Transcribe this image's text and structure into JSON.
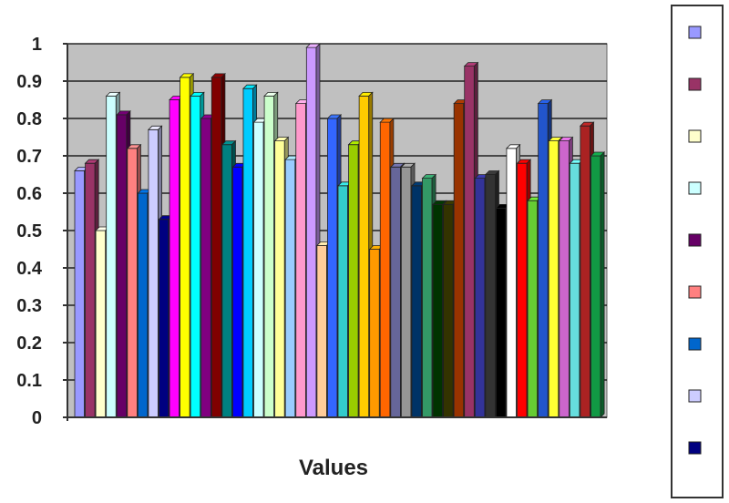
{
  "chart_data": {
    "type": "bar",
    "title": "",
    "xlabel": "Values",
    "ylabel": "",
    "ylim": [
      0,
      1
    ],
    "y_ticks": [
      "0",
      "0.1",
      "0.2",
      "0.3",
      "0.4",
      "0.5",
      "0.6",
      "0.7",
      "0.8",
      "0.9",
      "1"
    ],
    "grid": "horizontal",
    "legend_position": "right",
    "plot_background": "#c0c0c0",
    "categories": [
      "Values"
    ],
    "series": [
      {
        "color": "#9999ff",
        "values": [
          0.66
        ]
      },
      {
        "color": "#993366",
        "values": [
          0.68
        ]
      },
      {
        "color": "#ffffcc",
        "values": [
          0.5
        ]
      },
      {
        "color": "#ccffff",
        "values": [
          0.86
        ]
      },
      {
        "color": "#660066",
        "values": [
          0.81
        ]
      },
      {
        "color": "#ff8080",
        "values": [
          0.72
        ]
      },
      {
        "color": "#0066cc",
        "values": [
          0.6
        ]
      },
      {
        "color": "#ccccff",
        "values": [
          0.77
        ]
      },
      {
        "color": "#000080",
        "values": [
          0.53
        ]
      },
      {
        "color": "#ff00ff",
        "values": [
          0.85
        ]
      },
      {
        "color": "#ffff00",
        "values": [
          0.91
        ]
      },
      {
        "color": "#00ffff",
        "values": [
          0.86
        ]
      },
      {
        "color": "#800080",
        "values": [
          0.8
        ]
      },
      {
        "color": "#800000",
        "values": [
          0.91
        ]
      },
      {
        "color": "#008080",
        "values": [
          0.73
        ]
      },
      {
        "color": "#0000ff",
        "values": [
          0.67
        ]
      },
      {
        "color": "#00ccff",
        "values": [
          0.88
        ]
      },
      {
        "color": "#ccffff",
        "values": [
          0.79
        ]
      },
      {
        "color": "#ccffcc",
        "values": [
          0.86
        ]
      },
      {
        "color": "#ffff99",
        "values": [
          0.74
        ]
      },
      {
        "color": "#99ccff",
        "values": [
          0.69
        ]
      },
      {
        "color": "#ff99cc",
        "values": [
          0.84
        ]
      },
      {
        "color": "#cc99ff",
        "values": [
          0.99
        ]
      },
      {
        "color": "#ffcc99",
        "values": [
          0.46
        ]
      },
      {
        "color": "#3366ff",
        "values": [
          0.8
        ]
      },
      {
        "color": "#33cccc",
        "values": [
          0.62
        ]
      },
      {
        "color": "#99cc00",
        "values": [
          0.73
        ]
      },
      {
        "color": "#ffcc00",
        "values": [
          0.86
        ]
      },
      {
        "color": "#ff9900",
        "values": [
          0.45
        ]
      },
      {
        "color": "#ff6600",
        "values": [
          0.79
        ]
      },
      {
        "color": "#666699",
        "values": [
          0.67
        ]
      },
      {
        "color": "#969696",
        "values": [
          0.67
        ]
      },
      {
        "color": "#003366",
        "values": [
          0.62
        ]
      },
      {
        "color": "#339966",
        "values": [
          0.64
        ]
      },
      {
        "color": "#003300",
        "values": [
          0.57
        ]
      },
      {
        "color": "#333300",
        "values": [
          0.57
        ]
      },
      {
        "color": "#993300",
        "values": [
          0.84
        ]
      },
      {
        "color": "#993366",
        "values": [
          0.94
        ]
      },
      {
        "color": "#333399",
        "values": [
          0.64
        ]
      },
      {
        "color": "#333333",
        "values": [
          0.65
        ]
      },
      {
        "color": "#000000",
        "values": [
          0.56
        ]
      },
      {
        "color": "#ffffff",
        "values": [
          0.72
        ]
      },
      {
        "color": "#ff0000",
        "values": [
          0.68
        ]
      },
      {
        "color": "#66cc33",
        "values": [
          0.58
        ]
      },
      {
        "color": "#2255cc",
        "values": [
          0.84
        ]
      },
      {
        "color": "#ffff33",
        "values": [
          0.74
        ]
      },
      {
        "color": "#cc66cc",
        "values": [
          0.74
        ]
      },
      {
        "color": "#66dddd",
        "values": [
          0.68
        ]
      },
      {
        "color": "#aa2222",
        "values": [
          0.78
        ]
      },
      {
        "color": "#119944",
        "values": [
          0.7
        ]
      }
    ],
    "legend_swatches": [
      "#9999ff",
      "#993366",
      "#ffffcc",
      "#ccffff",
      "#660066",
      "#ff8080",
      "#0066cc",
      "#ccccff",
      "#000080"
    ]
  }
}
